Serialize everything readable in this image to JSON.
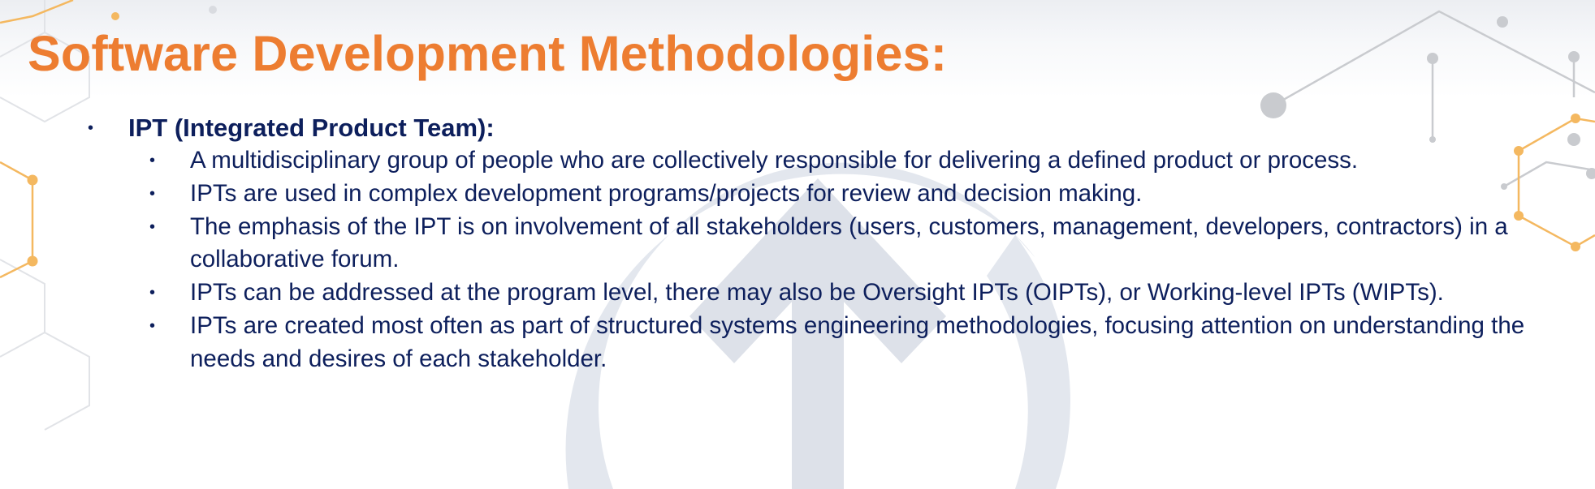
{
  "slide": {
    "title": "Software Development Methodologies:",
    "section": {
      "heading": "IPT (Integrated Product Team):",
      "bullet_glyph": "•",
      "points": [
        "A multidisciplinary group of people who are collectively responsible for delivering a defined product or process.",
        "IPTs are used in complex development programs/projects for review and decision making.",
        "The emphasis of the IPT is on involvement of all stakeholders (users, customers, management, developers, contractors) in a collaborative forum.",
        "IPTs can be addressed at the program level, there may also be Oversight IPTs (OIPTs), or Working-level IPTs (WIPTs).",
        "IPTs are created most often as part of structured systems engineering methodologies, focusing attention on understanding the needs and desires of each stakeholder."
      ]
    }
  },
  "colors": {
    "title": "#ed7d31",
    "body_text": "#0d1f5c",
    "accent_orange": "#f4b860",
    "network_gray": "#c9cbcf",
    "watermark": "#dfe3ea"
  }
}
